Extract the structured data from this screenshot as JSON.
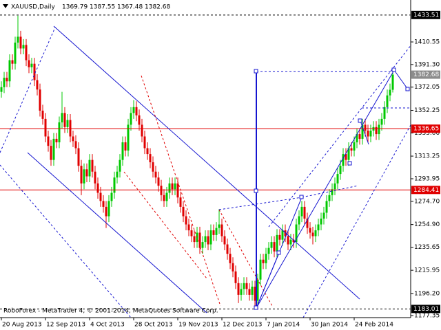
{
  "chart_data": {
    "type": "candlestick",
    "symbol": "XAUUSD,Daily",
    "footer": "RoboForex - MetaTrader 4, © 2001-2014, MetaQuotes Software Corp.",
    "categories": [
      "20 Aug 2013",
      null,
      null,
      null,
      null,
      null,
      null,
      null,
      null,
      null,
      null,
      null,
      null,
      null,
      null,
      null,
      "12 Sep 2013",
      null,
      null,
      null,
      null,
      null,
      null,
      null,
      null,
      null,
      null,
      null,
      null,
      null,
      null,
      null,
      "4 Oct 2013",
      null,
      null,
      null,
      null,
      null,
      null,
      null,
      null,
      null,
      null,
      null,
      null,
      null,
      null,
      null,
      "28 Oct 2013",
      null,
      null,
      null,
      null,
      null,
      null,
      null,
      null,
      null,
      null,
      null,
      null,
      null,
      null,
      null,
      "19 Nov 2013",
      null,
      null,
      null,
      null,
      null,
      null,
      null,
      null,
      null,
      null,
      null,
      null,
      null,
      null,
      null,
      "12 Dec 2013",
      null,
      null,
      null,
      null,
      null,
      null,
      null,
      null,
      null,
      null,
      null,
      null,
      null,
      null,
      null,
      "7 Jan 2014",
      null,
      null,
      null,
      null,
      null,
      null,
      null,
      null,
      null,
      null,
      null,
      null,
      null,
      null,
      null,
      "30 Jan 2014",
      null,
      null,
      null,
      null,
      null,
      null,
      null,
      null,
      null,
      null,
      null,
      null,
      null,
      null,
      null,
      "24 Feb 2014",
      null,
      null,
      null,
      null,
      null,
      null,
      null,
      null,
      null,
      null,
      null,
      null,
      null,
      null
    ],
    "open": [
      1368,
      1372,
      1380,
      1377,
      1395,
      1392,
      1410,
      1415,
      1405,
      1408,
      1395,
      1389,
      1392,
      1378,
      1370,
      1352,
      1345,
      1330,
      1322,
      1310,
      1328,
      1325,
      1342,
      1350,
      1338,
      1344,
      1330,
      1326,
      1320,
      1305,
      1290,
      1302,
      1296,
      1310,
      1300,
      1290,
      1282,
      1275,
      1270,
      1262,
      1275,
      1282,
      1295,
      1300,
      1310,
      1325,
      1318,
      1340,
      1350,
      1355,
      1348,
      1340,
      1330,
      1320,
      1315,
      1308,
      1300,
      1295,
      1288,
      1280,
      1275,
      1282,
      1290,
      1285,
      1290,
      1278,
      1270,
      1262,
      1255,
      1250,
      1245,
      1240,
      1248,
      1235,
      1240,
      1245,
      1238,
      1250,
      1246,
      1252,
      1255,
      1245,
      1238,
      1230,
      1222,
      1215,
      1205,
      1195,
      1200,
      1205,
      1200,
      1195,
      1202,
      1190,
      1208,
      1225,
      1222,
      1230,
      1235,
      1240,
      1232,
      1246,
      1242,
      1250,
      1245,
      1238,
      1242,
      1240,
      1255,
      1262,
      1270,
      1260,
      1252,
      1248,
      1245,
      1250,
      1255,
      1260,
      1265,
      1275,
      1280,
      1285,
      1290,
      1298,
      1305,
      1315,
      1310,
      1320,
      1318,
      1325,
      1332,
      1328,
      1340,
      1335,
      1330,
      1335,
      1338,
      1332,
      1340,
      1345,
      1355,
      1365,
      1369.79
    ],
    "high": [
      1377,
      1385,
      1385,
      1400,
      1400,
      1415,
      1433,
      1420,
      1413,
      1413,
      1400,
      1397,
      1397,
      1383,
      1375,
      1357,
      1350,
      1335,
      1327,
      1333,
      1333,
      1347,
      1368,
      1355,
      1349,
      1349,
      1335,
      1331,
      1325,
      1310,
      1307,
      1307,
      1315,
      1315,
      1305,
      1295,
      1287,
      1280,
      1275,
      1280,
      1287,
      1300,
      1305,
      1315,
      1330,
      1330,
      1345,
      1355,
      1361,
      1360,
      1353,
      1345,
      1335,
      1325,
      1320,
      1313,
      1305,
      1300,
      1293,
      1285,
      1287,
      1295,
      1295,
      1295,
      1295,
      1283,
      1275,
      1267,
      1260,
      1255,
      1250,
      1253,
      1253,
      1245,
      1250,
      1250,
      1255,
      1255,
      1257,
      1268,
      1260,
      1250,
      1243,
      1235,
      1227,
      1220,
      1210,
      1205,
      1210,
      1210,
      1205,
      1207,
      1207,
      1213,
      1230,
      1230,
      1235,
      1240,
      1245,
      1245,
      1251,
      1251,
      1255,
      1255,
      1250,
      1247,
      1247,
      1260,
      1267,
      1275,
      1275,
      1265,
      1257,
      1253,
      1255,
      1260,
      1265,
      1270,
      1280,
      1285,
      1290,
      1295,
      1303,
      1310,
      1320,
      1320,
      1325,
      1325,
      1330,
      1337,
      1337,
      1345,
      1345,
      1340,
      1340,
      1343,
      1343,
      1345,
      1350,
      1360,
      1370,
      1375,
      1387.55
    ],
    "low": [
      1363,
      1367,
      1372,
      1372,
      1387,
      1387,
      1405,
      1400,
      1400,
      1390,
      1384,
      1384,
      1373,
      1365,
      1347,
      1340,
      1325,
      1317,
      1305,
      1305,
      1320,
      1320,
      1337,
      1333,
      1333,
      1325,
      1321,
      1315,
      1300,
      1280,
      1285,
      1291,
      1291,
      1295,
      1285,
      1277,
      1270,
      1265,
      1252,
      1257,
      1270,
      1277,
      1290,
      1295,
      1305,
      1313,
      1313,
      1335,
      1345,
      1343,
      1335,
      1325,
      1315,
      1310,
      1303,
      1295,
      1290,
      1283,
      1275,
      1270,
      1270,
      1277,
      1280,
      1280,
      1273,
      1265,
      1257,
      1250,
      1245,
      1240,
      1235,
      1235,
      1230,
      1230,
      1235,
      1233,
      1233,
      1241,
      1241,
      1247,
      1240,
      1233,
      1225,
      1217,
      1210,
      1200,
      1188,
      1190,
      1195,
      1195,
      1190,
      1190,
      1183,
      1185,
      1203,
      1217,
      1217,
      1225,
      1230,
      1227,
      1227,
      1237,
      1237,
      1240,
      1233,
      1233,
      1235,
      1235,
      1250,
      1257,
      1255,
      1247,
      1243,
      1238,
      1240,
      1245,
      1250,
      1255,
      1260,
      1270,
      1275,
      1280,
      1285,
      1293,
      1300,
      1305,
      1305,
      1313,
      1313,
      1320,
      1323,
      1323,
      1330,
      1325,
      1325,
      1330,
      1327,
      1327,
      1335,
      1340,
      1350,
      1360,
      1367.48
    ],
    "close": [
      1372,
      1380,
      1377,
      1395,
      1392,
      1410,
      1415,
      1405,
      1408,
      1395,
      1389,
      1392,
      1378,
      1370,
      1352,
      1345,
      1330,
      1322,
      1310,
      1328,
      1325,
      1342,
      1350,
      1338,
      1344,
      1330,
      1326,
      1320,
      1305,
      1290,
      1302,
      1296,
      1310,
      1300,
      1290,
      1282,
      1275,
      1270,
      1262,
      1275,
      1282,
      1295,
      1300,
      1310,
      1325,
      1318,
      1340,
      1350,
      1355,
      1348,
      1340,
      1330,
      1320,
      1315,
      1308,
      1300,
      1295,
      1288,
      1280,
      1275,
      1282,
      1290,
      1285,
      1290,
      1278,
      1270,
      1262,
      1255,
      1250,
      1245,
      1240,
      1248,
      1235,
      1240,
      1245,
      1238,
      1250,
      1246,
      1252,
      1255,
      1245,
      1238,
      1230,
      1222,
      1215,
      1205,
      1195,
      1200,
      1205,
      1200,
      1195,
      1202,
      1190,
      1208,
      1225,
      1222,
      1230,
      1235,
      1240,
      1232,
      1246,
      1242,
      1250,
      1245,
      1238,
      1242,
      1240,
      1255,
      1262,
      1270,
      1260,
      1252,
      1248,
      1245,
      1250,
      1255,
      1260,
      1265,
      1275,
      1280,
      1285,
      1290,
      1298,
      1305,
      1315,
      1310,
      1320,
      1318,
      1325,
      1332,
      1328,
      1340,
      1335,
      1330,
      1335,
      1338,
      1332,
      1340,
      1345,
      1355,
      1365,
      1369.79,
      1382.68
    ],
    "up_color": "#00c800",
    "down_color": "#e00000",
    "ylim": [
      1175.6,
      1446.3
    ],
    "yticks": [
      1410.55,
      {
        "value": 1391.3,
        "label": "1391.30"
      },
      1372.05,
      1352.25,
      {
        "value": 1333,
        "label": "1333.00"
      },
      1313.25,
      1293.95,
      {
        "value": 1274.7,
        "label": "1274.70"
      },
      {
        "value": 1254.9,
        "label": "1254.90"
      },
      1235.65,
      1215.95,
      {
        "value": 1196.2,
        "label": "1196.20"
      },
      1177.35
    ],
    "levels": [
      {
        "value": 1433.51,
        "color": "#000000",
        "dashed": true
      },
      {
        "value": 1336.65,
        "color": "#e00000",
        "dashed": false
      },
      {
        "value": 1284.41,
        "color": "#e00000",
        "dashed": false
      },
      {
        "value": 1183.01,
        "color": "#000000",
        "dashed": true
      }
    ],
    "last_price_color": "#8c8c8c"
  }
}
